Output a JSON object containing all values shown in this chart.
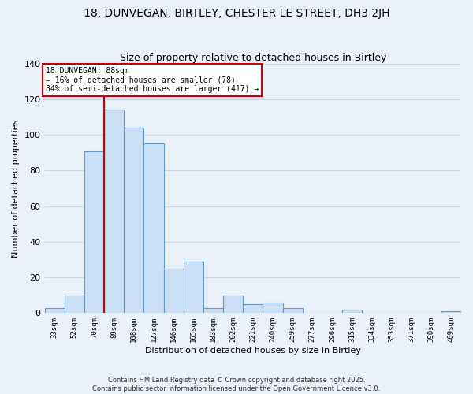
{
  "title": "18, DUNVEGAN, BIRTLEY, CHESTER LE STREET, DH3 2JH",
  "subtitle": "Size of property relative to detached houses in Birtley",
  "xlabel": "Distribution of detached houses by size in Birtley",
  "ylabel": "Number of detached properties",
  "bin_labels": [
    "33sqm",
    "52sqm",
    "70sqm",
    "89sqm",
    "108sqm",
    "127sqm",
    "146sqm",
    "165sqm",
    "183sqm",
    "202sqm",
    "221sqm",
    "240sqm",
    "259sqm",
    "277sqm",
    "296sqm",
    "315sqm",
    "334sqm",
    "353sqm",
    "371sqm",
    "390sqm",
    "409sqm"
  ],
  "bar_values": [
    3,
    10,
    91,
    114,
    104,
    95,
    25,
    29,
    3,
    10,
    5,
    6,
    3,
    0,
    0,
    2,
    0,
    0,
    0,
    0,
    1
  ],
  "bar_color": "#cce0f5",
  "bar_edge_color": "#6699cc",
  "vline_color": "#cc0000",
  "annotation_title": "18 DUNVEGAN: 88sqm",
  "annotation_line1": "← 16% of detached houses are smaller (78)",
  "annotation_line2": "84% of semi-detached houses are larger (417) →",
  "annotation_box_color": "#ffffff",
  "annotation_box_edge": "#cc0000",
  "ylim": [
    0,
    140
  ],
  "yticks": [
    0,
    20,
    40,
    60,
    80,
    100,
    120,
    140
  ],
  "grid_color": "#c8d8e8",
  "footnote1": "Contains HM Land Registry data © Crown copyright and database right 2025.",
  "footnote2": "Contains public sector information licensed under the Open Government Licence v3.0.",
  "background_color": "#eaf0f8"
}
